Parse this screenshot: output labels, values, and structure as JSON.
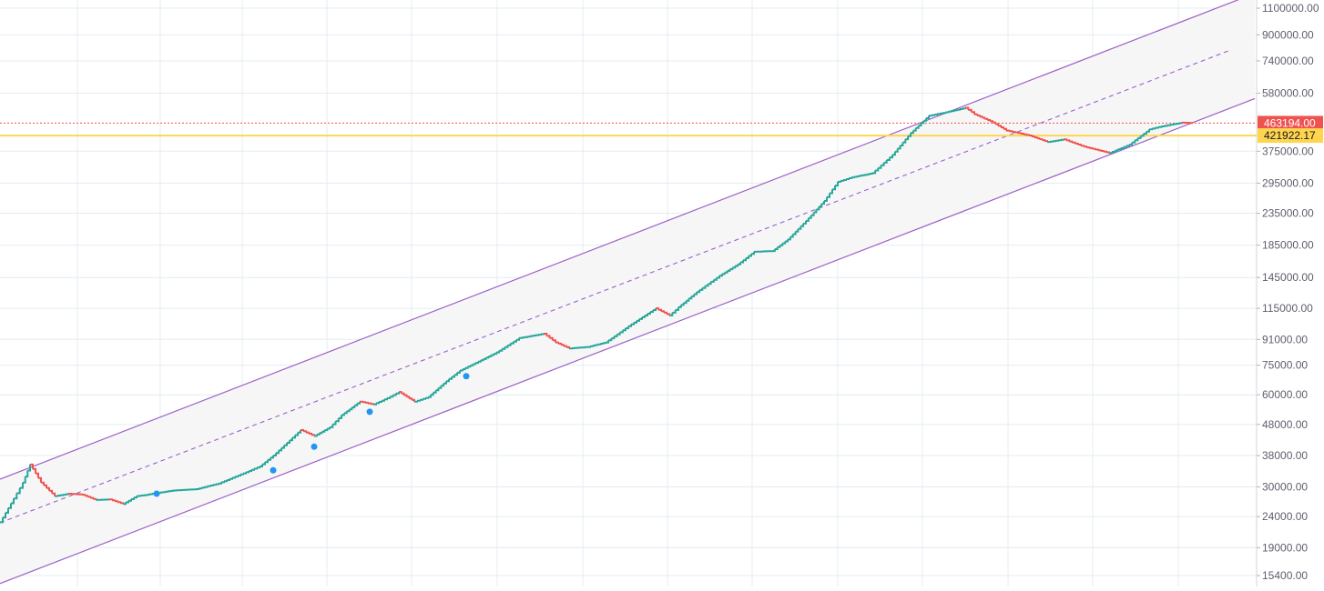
{
  "chart_data": {
    "type": "line",
    "title": "",
    "xlabel": "",
    "ylabel": "",
    "scale": "log",
    "grid": true,
    "colors": {
      "up": "#26a69a",
      "down": "#ef5350",
      "channel": "#9c5fc9",
      "channel_fill": "#f6f6f6",
      "grid": "#e4ecf2",
      "marker": "#2196f3",
      "price_line": "#ef5350",
      "support_line": "#ffd54f",
      "axis_text": "#5d606b"
    },
    "y_ticks": [
      {
        "value": 1100000,
        "label": "1100000.00"
      },
      {
        "value": 900000,
        "label": "900000.00"
      },
      {
        "value": 740000,
        "label": "740000.00"
      },
      {
        "value": 580000,
        "label": "580000.00"
      },
      {
        "value": 375000,
        "label": "375000.00"
      },
      {
        "value": 295000,
        "label": "295000.00"
      },
      {
        "value": 235000,
        "label": "235000.00"
      },
      {
        "value": 185000,
        "label": "185000.00"
      },
      {
        "value": 145000,
        "label": "145000.00"
      },
      {
        "value": 115000,
        "label": "115000.00"
      },
      {
        "value": 91000,
        "label": "91000.00"
      },
      {
        "value": 75000,
        "label": "75000.00"
      },
      {
        "value": 60000,
        "label": "60000.00"
      },
      {
        "value": 48000,
        "label": "48000.00"
      },
      {
        "value": 38000,
        "label": "38000.00"
      },
      {
        "value": 30000,
        "label": "30000.00"
      },
      {
        "value": 24000,
        "label": "24000.00"
      },
      {
        "value": 19000,
        "label": "19000.00"
      },
      {
        "value": 15400,
        "label": "15400.00"
      }
    ],
    "price_line": {
      "value": 463194,
      "label": "463194.00"
    },
    "support_line": {
      "value": 421922.17,
      "label": "421922.17"
    },
    "series": [
      {
        "x": [
          0,
          15,
          25,
          33,
          45,
          60,
          75,
          90,
          105,
          120,
          135,
          150,
          158,
          170,
          190,
          215,
          240,
          270,
          285,
          300,
          330,
          345,
          362,
          375,
          395,
          410,
          425,
          438,
          455,
          470,
          490,
          505,
          525,
          545,
          570,
          597,
          610,
          625,
          645,
          665,
          690,
          720,
          735,
          745,
          765,
          790,
          810,
          828,
          848,
          865,
          885,
          905,
          920,
          935,
          958,
          980,
          1000,
          1020,
          1035,
          1060,
          1070,
          1090,
          1105,
          1130,
          1150,
          1168,
          1190,
          1218,
          1240,
          1262,
          1272,
          1285,
          1298,
          1310
        ],
        "values": [
          23000,
          27500,
          31000,
          35500,
          31000,
          28000,
          28500,
          28300,
          27200,
          27300,
          26400,
          28000,
          28200,
          28600,
          29200,
          29500,
          30800,
          33500,
          35000,
          38000,
          46000,
          44000,
          47000,
          51500,
          57000,
          55800,
          58500,
          61300,
          57000,
          59000,
          66500,
          72000,
          77000,
          82500,
          92000,
          95000,
          89000,
          85000,
          86000,
          89000,
          100500,
          115000,
          109000,
          116000,
          130000,
          147000,
          160000,
          176000,
          177000,
          193000,
          222000,
          258000,
          298000,
          308000,
          318000,
          365000,
          430000,
          490000,
          500000,
          520000,
          495000,
          466000,
          438000,
          422000,
          402000,
          410000,
          388000,
          370000,
          394000,
          442000,
          450000,
          458000,
          465000,
          463194
        ]
      }
    ],
    "markers": [
      {
        "x": 172,
        "value": 28500
      },
      {
        "x": 300,
        "value": 34000
      },
      {
        "x": 345,
        "value": 40600
      },
      {
        "x": 406,
        "value": 52800
      },
      {
        "x": 512,
        "value": 69000
      }
    ],
    "channel": {
      "upper": {
        "x": [
          0,
          1378
        ],
        "values": [
          31800,
          1230000
        ]
      },
      "middle": {
        "x": [
          0,
          1350
        ],
        "values": [
          22900,
          800000
        ]
      },
      "lower": {
        "x": [
          0,
          1378
        ],
        "values": [
          14500,
          557000
        ]
      }
    }
  }
}
